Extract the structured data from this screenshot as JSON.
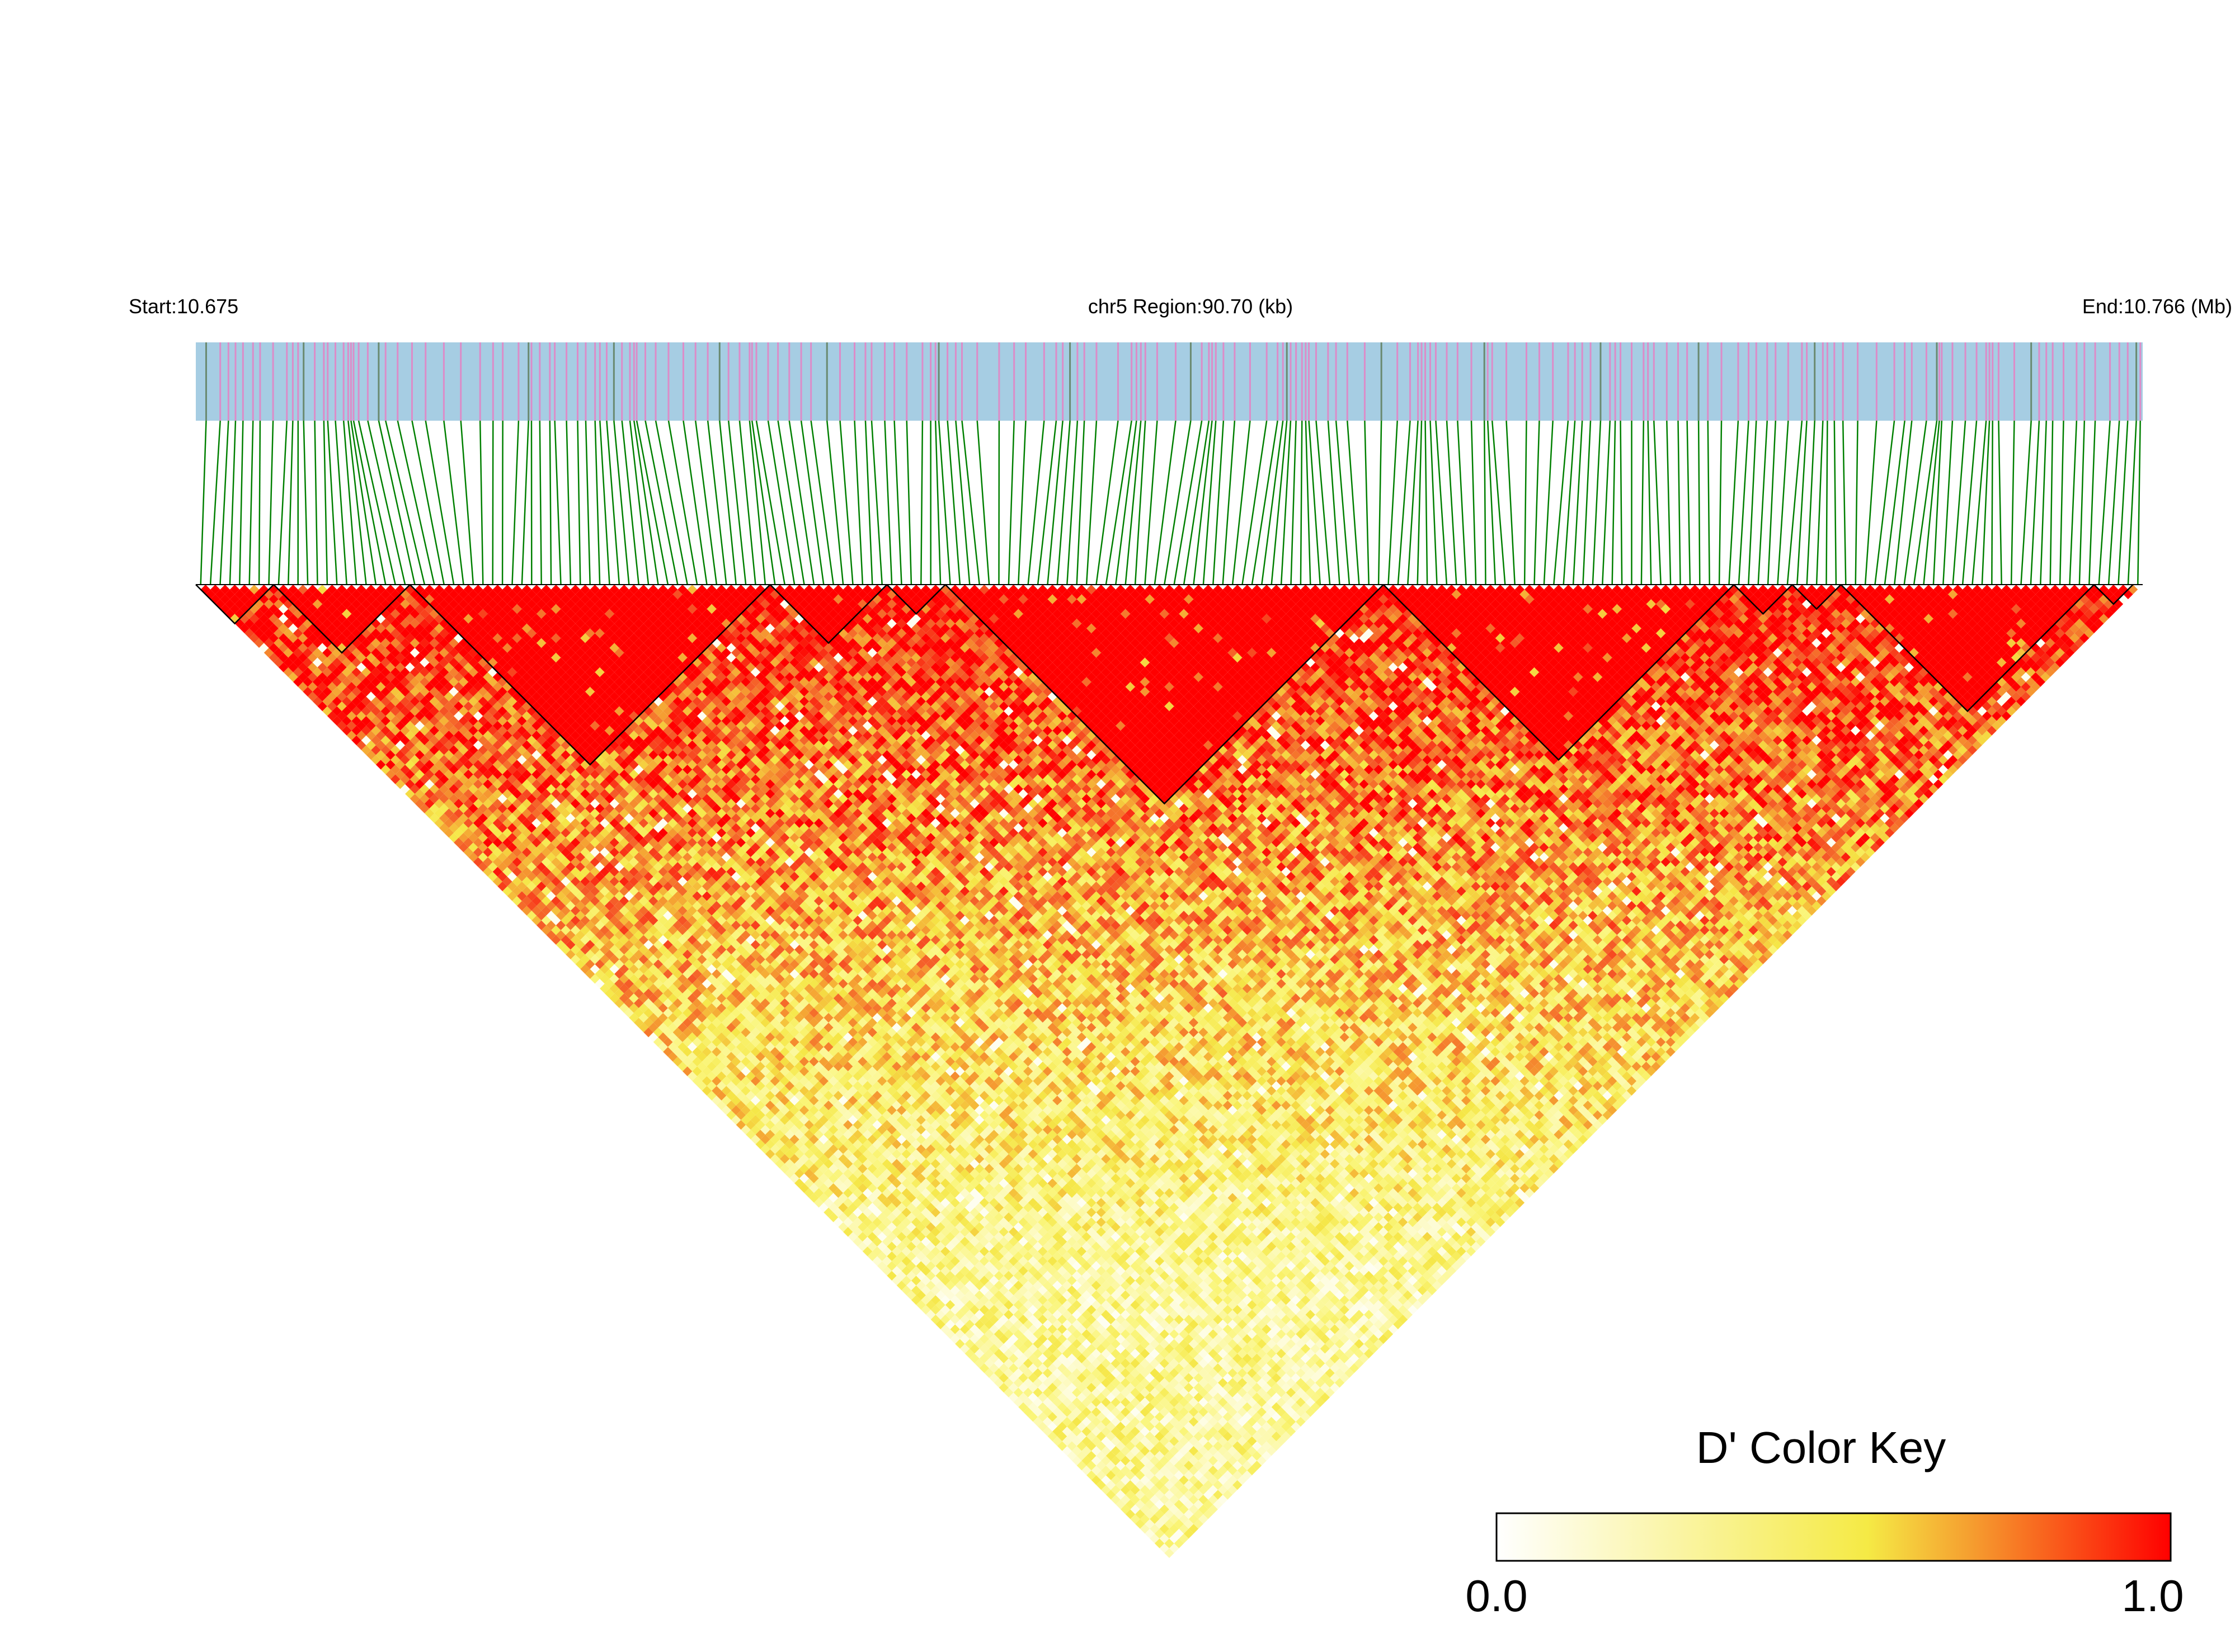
{
  "header": {
    "start_label": "Start:10.675",
    "region_label": "chr5 Region:90.70 (kb)",
    "end_label": "End:10.766 (Mb)"
  },
  "chart_data": {
    "type": "heatmap",
    "title": "",
    "chromosome": "chr5",
    "region_start_mb": 10.675,
    "region_end_mb": 10.766,
    "region_size_kb": 90.7,
    "metric": "D'",
    "snp_count": 200,
    "block_boundaries_snp_index": [
      0,
      8,
      22,
      59,
      71,
      77,
      122,
      158,
      164,
      169,
      195,
      199
    ],
    "color_key": {
      "title": "D' Color Key",
      "min_label": "0.0",
      "max_label": "1.0",
      "min": 0.0,
      "max": 1.0,
      "colors": [
        "#ffffff",
        "#f5ef4a",
        "#ff0000"
      ]
    }
  },
  "colors": {
    "track_fill": "#a6cde3",
    "snp_tick": "#dc8cc8",
    "connector": "#008000",
    "block_outline": "#000000"
  }
}
